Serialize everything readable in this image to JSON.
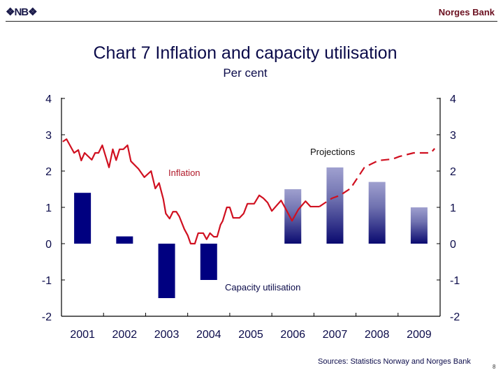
{
  "header": {
    "logo": "NB",
    "brand": "Norges Bank"
  },
  "footer": {
    "source": "Sources: Statistics Norway and Norges Bank",
    "page": "8"
  },
  "chart_data": {
    "type": "bar+line",
    "title": "Chart 7 Inflation and capacity utilisation",
    "subtitle": "Per cent",
    "ylim": [
      -2,
      4
    ],
    "yticks": [
      "4",
      "3",
      "2",
      "1",
      "0",
      "-1",
      "-2"
    ],
    "ytick_values": [
      4,
      3,
      2,
      1,
      0,
      -1,
      -2
    ],
    "xlim": [
      2001,
      2010
    ],
    "categories": [
      "2001",
      "2002",
      "2003",
      "2004",
      "2005",
      "2006",
      "2007",
      "2008",
      "2009"
    ],
    "annotations": {
      "inflation": "Inflation",
      "capacity": "Capacity utilisation",
      "projections": "Projections"
    },
    "colors": {
      "inflation": "#d01020",
      "bars": "#000080",
      "projection_bars_top": "#9fa0cf"
    },
    "series": [
      {
        "name": "Capacity utilisation",
        "kind": "bar",
        "values": [
          1.4,
          0.2,
          -1.5,
          -1.0,
          null,
          1.5,
          2.1,
          1.7,
          1.0
        ],
        "projection": [
          false,
          false,
          false,
          false,
          false,
          true,
          true,
          true,
          true
        ]
      },
      {
        "name": "Inflation",
        "kind": "line",
        "style": "solid",
        "x": [
          2001.03,
          2001.12,
          2001.3,
          2001.4,
          2001.47,
          2001.55,
          2001.72,
          2001.8,
          2001.88,
          2001.97,
          2002.13,
          2002.22,
          2002.3,
          2002.38,
          2002.47,
          2002.57,
          2002.65,
          2002.83,
          2002.97,
          2003.13,
          2003.23,
          2003.32,
          2003.42,
          2003.48,
          2003.57,
          2003.65,
          2003.73,
          2003.8,
          2003.92,
          2004.0,
          2004.07,
          2004.17,
          2004.25,
          2004.37,
          2004.45,
          2004.53,
          2004.62,
          2004.7,
          2004.78,
          2004.83,
          2004.93,
          2005.0,
          2005.08,
          2005.23,
          2005.33,
          2005.42,
          2005.58,
          2005.7,
          2005.8,
          2005.9,
          2006.0,
          2006.22,
          2006.32,
          2006.48,
          2006.63,
          2006.8,
          2006.92,
          2007.13
        ],
        "y": [
          2.81,
          2.88,
          2.5,
          2.58,
          2.29,
          2.5,
          2.31,
          2.5,
          2.5,
          2.71,
          2.1,
          2.6,
          2.3,
          2.6,
          2.6,
          2.71,
          2.27,
          2.06,
          1.83,
          2.0,
          1.52,
          1.67,
          1.23,
          0.83,
          0.69,
          0.88,
          0.88,
          0.75,
          0.4,
          0.23,
          0.0,
          0.0,
          0.29,
          0.29,
          0.12,
          0.29,
          0.19,
          0.19,
          0.52,
          0.62,
          1.0,
          1.0,
          0.71,
          0.71,
          0.83,
          1.1,
          1.1,
          1.33,
          1.25,
          1.13,
          0.9,
          1.19,
          0.98,
          0.63,
          0.94,
          1.17,
          1.02,
          1.02
        ]
      },
      {
        "name": "Inflation projection",
        "kind": "line",
        "style": "dashed",
        "x": [
          2007.13,
          2007.27,
          2007.43,
          2007.62,
          2007.87,
          2008.2,
          2008.53,
          2008.87,
          2009.03,
          2009.37,
          2009.78,
          2009.87
        ],
        "y": [
          1.02,
          1.13,
          1.25,
          1.33,
          1.52,
          2.1,
          2.29,
          2.33,
          2.4,
          2.5,
          2.5,
          2.62
        ]
      }
    ]
  }
}
